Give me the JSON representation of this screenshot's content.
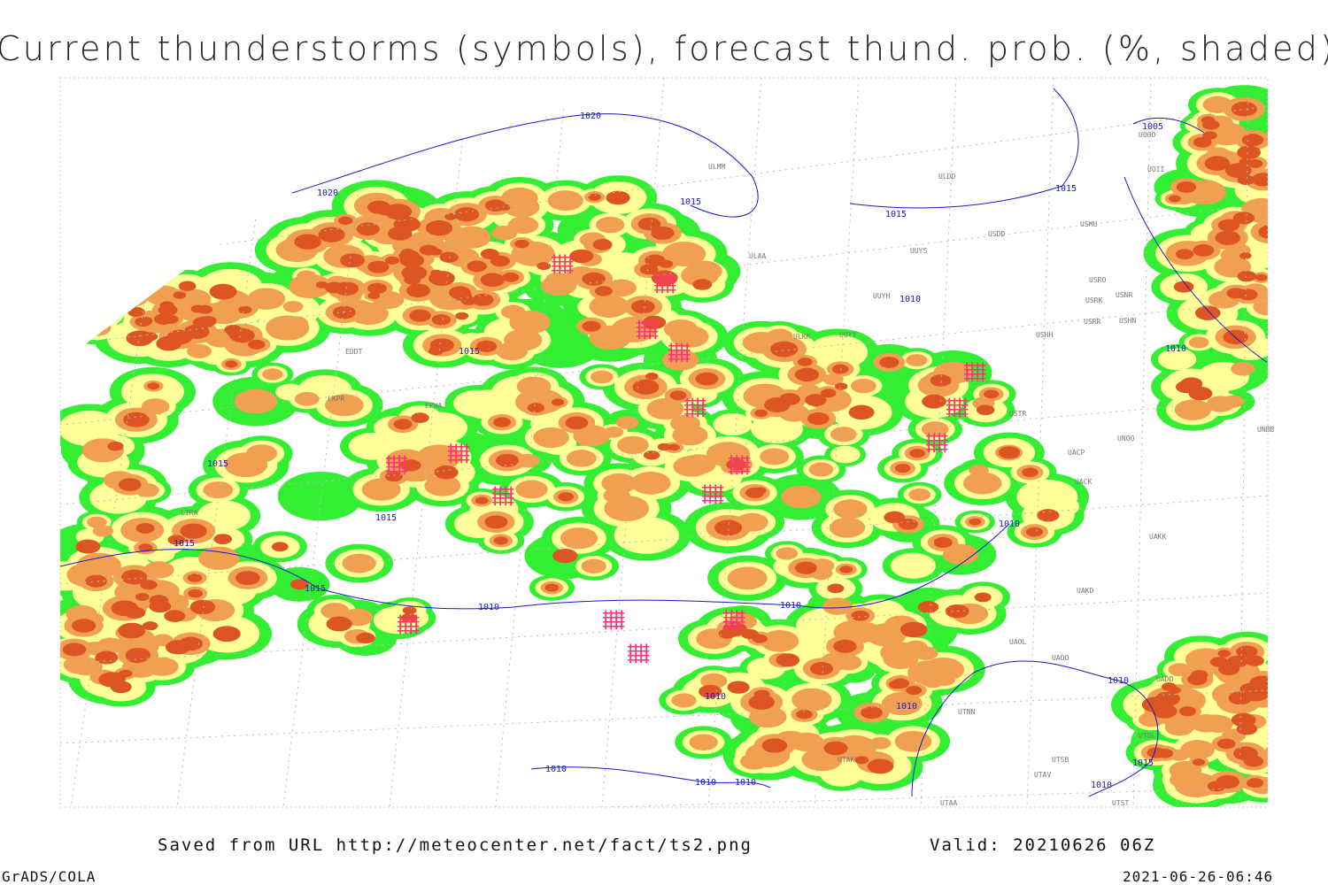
{
  "header": {
    "title": "Current thunderstorms (symbols), forecast thund. prob. (%, shaded)"
  },
  "map": {
    "isobar_labels": [
      "1020",
      "1020",
      "1015",
      "1015",
      "1015",
      "1005",
      "1010",
      "1010",
      "1015",
      "1015",
      "1015",
      "1015",
      "1015",
      "1010",
      "1010",
      "1010",
      "1010",
      "1010",
      "1010",
      "1010",
      "1010",
      "1010",
      "1010",
      "1015"
    ],
    "station_labels": [
      "ULMM",
      "ULDD",
      "USDD",
      "USMU",
      "ULAA",
      "UUYS",
      "USRO",
      "USRK",
      "USNR",
      "UUYH",
      "USRR",
      "USHN",
      "ULKK",
      "UUYY",
      "USHH",
      "UOOO",
      "UOII",
      "EDDT",
      "USTR",
      "UNOO",
      "UACP",
      "UACK",
      "UAKK",
      "UAKD",
      "UAOL",
      "UAOO",
      "UTNN",
      "UTAK",
      "UTSB",
      "UTAV",
      "UTAA",
      "UTST",
      "LIRA",
      "LKPR",
      "EPWA",
      "UNBB",
      "UADD",
      "UTDL"
    ]
  },
  "footer": {
    "source": "Saved from URL http://meteocenter.net/fact/ts2.png",
    "valid": "Valid: 20210626 06Z",
    "software": "GrADS/COLA",
    "timestamp": "2021-06-26-06:46"
  }
}
